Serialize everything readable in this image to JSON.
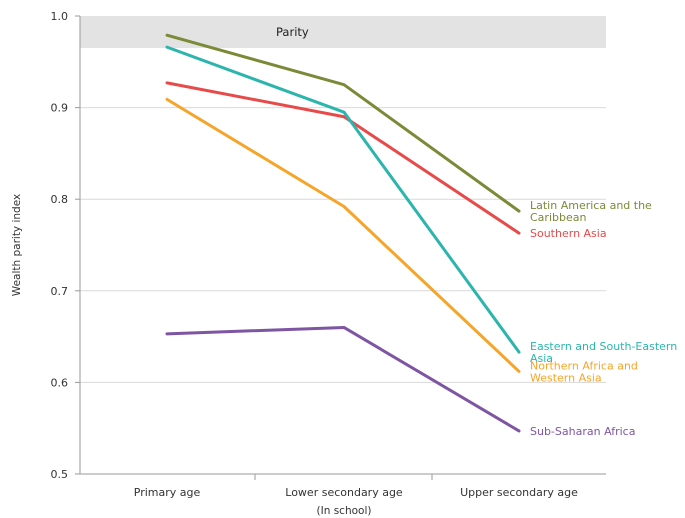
{
  "chart_data": {
    "type": "line",
    "ylabel": "Wealth parity index",
    "xlabel": "(In school)",
    "categories": [
      "Primary age",
      "Lower secondary age",
      "Upper secondary age"
    ],
    "ylim": [
      0.5,
      1.0
    ],
    "yticks": [
      {
        "value": 0.5,
        "label": "0.5"
      },
      {
        "value": 0.6,
        "label": "0.6"
      },
      {
        "value": 0.7,
        "label": "0.7"
      },
      {
        "value": 0.8,
        "label": "0.8"
      },
      {
        "value": 0.9,
        "label": "0.9"
      },
      {
        "value": 1.0,
        "label": "1.0"
      }
    ],
    "grid": true,
    "parity_band": {
      "label": "Parity",
      "range": [
        0.965,
        1.0
      ],
      "color": "#e3e3e3"
    },
    "series": [
      {
        "name": "Latin America and the Caribbean",
        "label_lines": [
          "Latin America and the",
          "Caribbean"
        ],
        "color": "#7a8a37",
        "values": [
          0.979,
          0.925,
          0.787
        ]
      },
      {
        "name": "Southern Asia",
        "label_lines": [
          "Southern Asia"
        ],
        "color": "#e84a4a",
        "values": [
          0.927,
          0.89,
          0.763
        ]
      },
      {
        "name": "Eastern and South-Eastern Asia",
        "label_lines": [
          "Eastern and South-Eastern",
          "Asia"
        ],
        "color": "#2bb5ad",
        "values": [
          0.966,
          0.895,
          0.633
        ]
      },
      {
        "name": "Northern Africa and Western Asia",
        "label_lines": [
          "Northern Africa and",
          "Western Asia"
        ],
        "color": "#f5a52a",
        "values": [
          0.909,
          0.792,
          0.612
        ]
      },
      {
        "name": "Sub-Saharan Africa",
        "label_lines": [
          "Sub-Saharan Africa"
        ],
        "color": "#7e55a3",
        "values": [
          0.653,
          0.66,
          0.547
        ]
      }
    ]
  }
}
